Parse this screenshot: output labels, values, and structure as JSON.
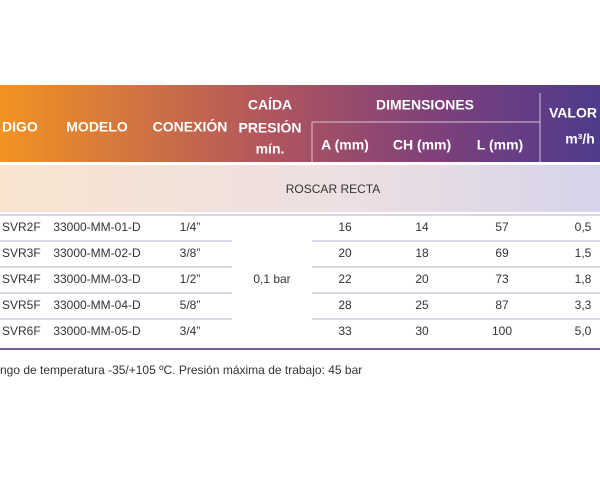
{
  "table": {
    "header": {
      "codigo": "DIGO",
      "modelo": "MODELO",
      "conexion": "CONEXIÓN",
      "caida": [
        "CAÍDA",
        "PRESIÓN",
        "mín."
      ],
      "dimensiones": "DIMENSIONES",
      "a": "A (mm)",
      "ch": "CH (mm)",
      "l": "L  (mm)",
      "valor": "VALOR K",
      "unit": "m³/h"
    },
    "section": "ROSCAR RECTA",
    "presion": "0,1 bar",
    "rows": [
      [
        "SVR2F",
        "33000-MM-01-D",
        "1/4”",
        "16",
        "14",
        "57",
        "0,5"
      ],
      [
        "SVR3F",
        "33000-MM-02-D",
        "3/8”",
        "20",
        "18",
        "69",
        "1,5"
      ],
      [
        "SVR4F",
        "33000-MM-03-D",
        "1/2”",
        "22",
        "20",
        "73",
        "1,8"
      ],
      [
        "SVR5F",
        "33000-MM-04-D",
        "5/8”",
        "28",
        "25",
        "87",
        "3,3"
      ],
      [
        "SVR6F",
        "33000-MM-05-D",
        "3/4”",
        "33",
        "30",
        "100",
        "5,0"
      ]
    ]
  },
  "footer": "ngo de temperatura -35/+105 ºC. Presión máxima de trabajo: 45 bar"
}
